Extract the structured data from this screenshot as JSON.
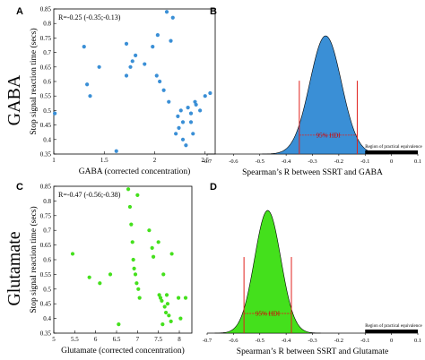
{
  "colors": {
    "gaba": "#3a8fd6",
    "glutamate": "#44e01c",
    "hdi_line": "#e0201c",
    "rope": "#000000"
  },
  "row_labels": {
    "top": "GABA",
    "bottom": "Glutamate"
  },
  "chart_data": [
    {
      "panel": "A",
      "type": "scatter",
      "annotation": "R=-0.25 (-0.35;-0.13)",
      "xlabel": "GABA (corrected concentration)",
      "ylabel": "Stop signal reaction time (secs)",
      "xlim": [
        1,
        2.6
      ],
      "ylim": [
        0.35,
        0.85
      ],
      "xticks": [
        "1",
        "1.5",
        "2",
        "2.5"
      ],
      "yticks": [
        "0.35",
        "0.4",
        "0.45",
        "0.5",
        "0.55",
        "0.6",
        "0.65",
        "0.7",
        "0.75",
        "0.8",
        "0.85"
      ],
      "points": [
        [
          1.01,
          0.49
        ],
        [
          1.3,
          0.72
        ],
        [
          1.33,
          0.59
        ],
        [
          1.36,
          0.55
        ],
        [
          1.45,
          0.65
        ],
        [
          1.72,
          0.62
        ],
        [
          1.72,
          0.73
        ],
        [
          1.76,
          0.65
        ],
        [
          1.78,
          0.67
        ],
        [
          1.81,
          0.69
        ],
        [
          1.9,
          0.66
        ],
        [
          1.98,
          0.72
        ],
        [
          2.02,
          0.62
        ],
        [
          2.03,
          0.76
        ],
        [
          2.05,
          0.6
        ],
        [
          2.09,
          0.57
        ],
        [
          2.12,
          0.84
        ],
        [
          2.14,
          0.53
        ],
        [
          2.16,
          0.74
        ],
        [
          2.18,
          0.82
        ],
        [
          2.21,
          0.42
        ],
        [
          2.23,
          0.48
        ],
        [
          2.24,
          0.44
        ],
        [
          2.26,
          0.5
        ],
        [
          2.28,
          0.46
        ],
        [
          2.28,
          0.4
        ],
        [
          2.31,
          0.38
        ],
        [
          2.33,
          0.51
        ],
        [
          2.36,
          0.49
        ],
        [
          2.36,
          0.46
        ],
        [
          2.38,
          0.42
        ],
        [
          2.4,
          0.53
        ],
        [
          2.41,
          0.52
        ],
        [
          2.45,
          0.5
        ],
        [
          2.5,
          0.55
        ],
        [
          2.55,
          0.56
        ],
        [
          1.62,
          0.36
        ]
      ]
    },
    {
      "panel": "B",
      "type": "area",
      "xlabel": "Spearman’s R between SSRT and GABA",
      "xlim": [
        -0.7,
        0.1
      ],
      "xticks": [
        "-0.7",
        "-0.6",
        "-0.5",
        "-0.4",
        "-0.3",
        "-0.2",
        "-0.1",
        "0",
        "0.1"
      ],
      "posterior_mean": -0.25,
      "posterior_sd": 0.06,
      "hdi": [
        -0.35,
        -0.13
      ],
      "hdi_label": "95% HDI",
      "rope": [
        -0.1,
        0.1
      ],
      "rope_label": "Region of practical equivalence"
    },
    {
      "panel": "C",
      "type": "scatter",
      "annotation": "R=-0.47 (-0.56;-0.38)",
      "xlabel": "Glutamate (corrected concentration)",
      "ylabel": "Stop signal reaction time (secs)",
      "xlim": [
        5,
        8.3
      ],
      "ylim": [
        0.35,
        0.85
      ],
      "xticks": [
        "5",
        "5.5",
        "6",
        "6.5",
        "7",
        "7.5",
        "8"
      ],
      "yticks": [
        "0.35",
        "0.4",
        "0.45",
        "0.5",
        "0.55",
        "0.6",
        "0.65",
        "0.7",
        "0.75",
        "0.8",
        "0.85"
      ],
      "points": [
        [
          5.45,
          0.62
        ],
        [
          5.85,
          0.54
        ],
        [
          6.1,
          0.52
        ],
        [
          6.35,
          0.55
        ],
        [
          6.55,
          0.38
        ],
        [
          6.78,
          0.84
        ],
        [
          6.82,
          0.78
        ],
        [
          6.85,
          0.72
        ],
        [
          6.88,
          0.66
        ],
        [
          6.9,
          0.6
        ],
        [
          6.92,
          0.57
        ],
        [
          6.95,
          0.55
        ],
        [
          6.98,
          0.52
        ],
        [
          7.02,
          0.5
        ],
        [
          7.05,
          0.47
        ],
        [
          7.0,
          0.82
        ],
        [
          7.28,
          0.7
        ],
        [
          7.35,
          0.64
        ],
        [
          7.38,
          0.61
        ],
        [
          7.5,
          0.66
        ],
        [
          7.52,
          0.48
        ],
        [
          7.55,
          0.47
        ],
        [
          7.58,
          0.46
        ],
        [
          7.6,
          0.38
        ],
        [
          7.62,
          0.55
        ],
        [
          7.65,
          0.44
        ],
        [
          7.68,
          0.42
        ],
        [
          7.7,
          0.48
        ],
        [
          7.72,
          0.45
        ],
        [
          7.75,
          0.41
        ],
        [
          7.8,
          0.39
        ],
        [
          7.82,
          0.62
        ],
        [
          7.98,
          0.47
        ],
        [
          8.03,
          0.4
        ],
        [
          8.15,
          0.47
        ]
      ]
    },
    {
      "panel": "D",
      "type": "area",
      "xlabel": "Spearman’s R between SSRT and Glutamate",
      "xlim": [
        -0.7,
        0.1
      ],
      "xticks": [
        "-0.7",
        "-0.6",
        "-0.5",
        "-0.4",
        "-0.3",
        "-0.2",
        "-0.1",
        "0",
        "0.1"
      ],
      "posterior_mean": -0.47,
      "posterior_sd": 0.05,
      "hdi": [
        -0.56,
        -0.38
      ],
      "hdi_label": "95% HDI",
      "rope": [
        -0.1,
        0.1
      ],
      "rope_label": "Region of practical equivalence"
    }
  ]
}
